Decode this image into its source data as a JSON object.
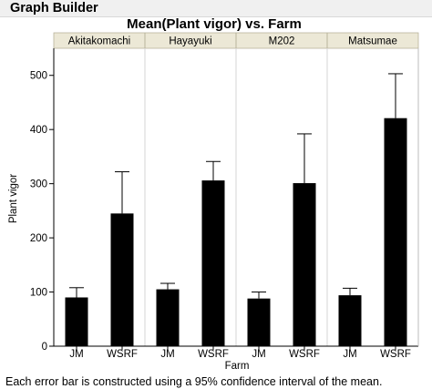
{
  "window": {
    "title": "Graph Builder"
  },
  "footnote": "Each error bar is constructed using a 95% confidence interval of the mean.",
  "colors": {
    "bar": "#000000",
    "panel_header": "#ece8d6",
    "background": "#ffffff",
    "grid_divider": "#d4d4d4"
  },
  "chart_data": {
    "type": "bar",
    "title": "Mean(Plant vigor) vs. Farm",
    "xlabel": "Farm",
    "ylabel": "Plant vigor",
    "ylim": [
      0,
      550
    ],
    "yticks": [
      0,
      100,
      200,
      300,
      400,
      500
    ],
    "grid": false,
    "panels": [
      {
        "name": "Akitakomachi",
        "categories": [
          "JM",
          "WSRF"
        ],
        "values": [
          90,
          245
        ],
        "err_upper": [
          108,
          322
        ]
      },
      {
        "name": "Hayayuki",
        "categories": [
          "JM",
          "WSRF"
        ],
        "values": [
          105,
          306
        ],
        "err_upper": [
          116,
          341
        ]
      },
      {
        "name": "M202",
        "categories": [
          "JM",
          "WSRF"
        ],
        "values": [
          88,
          301
        ],
        "err_upper": [
          100,
          392
        ]
      },
      {
        "name": "Matsumae",
        "categories": [
          "JM",
          "WSRF"
        ],
        "values": [
          94,
          421
        ],
        "err_upper": [
          107,
          503
        ]
      }
    ]
  }
}
